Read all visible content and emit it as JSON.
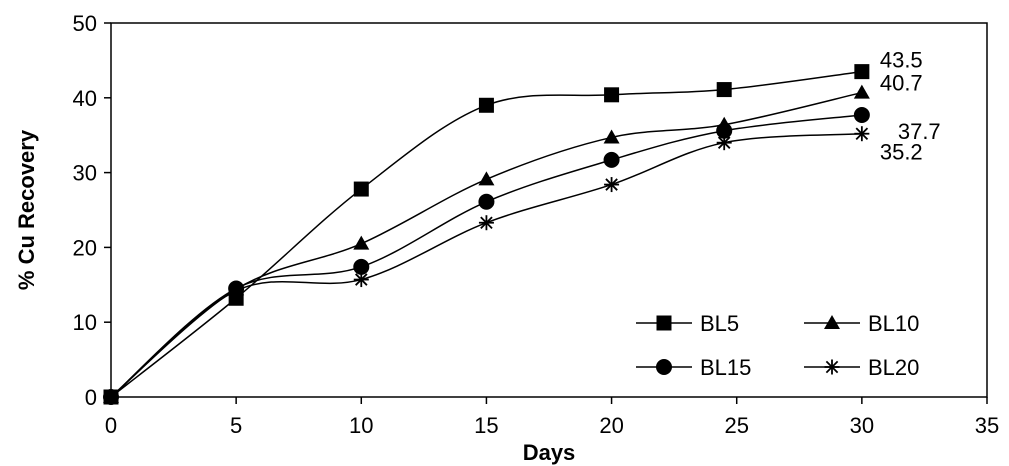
{
  "chart_data": {
    "type": "line",
    "xlabel": "Days",
    "ylabel": "% Cu Recovery",
    "xlim": [
      0,
      35
    ],
    "ylim": [
      0,
      50
    ],
    "xticks": [
      0,
      5,
      10,
      15,
      20,
      25,
      30,
      35
    ],
    "yticks": [
      0,
      10,
      20,
      30,
      40,
      50
    ],
    "grid": false,
    "legend_position": "bottom-right",
    "series": [
      {
        "name": "BL5",
        "marker": "square",
        "x": [
          0,
          5,
          10,
          15,
          20,
          24.5,
          30
        ],
        "y": [
          0,
          13.2,
          27.8,
          39.0,
          40.4,
          41.1,
          43.5
        ],
        "end_label": "43.5"
      },
      {
        "name": "BL10",
        "marker": "triangle",
        "x": [
          0,
          5,
          10,
          15,
          20,
          24.5,
          30
        ],
        "y": [
          0,
          14.4,
          20.5,
          29.1,
          34.7,
          36.4,
          40.7
        ],
        "end_label": "40.7"
      },
      {
        "name": "BL15",
        "marker": "circle",
        "x": [
          0,
          5,
          10,
          15,
          20,
          24.5,
          30
        ],
        "y": [
          0,
          14.5,
          17.4,
          26.1,
          31.7,
          35.6,
          37.7
        ],
        "end_label": "37.7"
      },
      {
        "name": "BL20",
        "marker": "star",
        "x": [
          0,
          5,
          10,
          15,
          20,
          24.5,
          30
        ],
        "y": [
          0,
          14.2,
          15.7,
          23.3,
          28.4,
          34.0,
          35.2
        ],
        "end_label": "35.2"
      }
    ]
  }
}
